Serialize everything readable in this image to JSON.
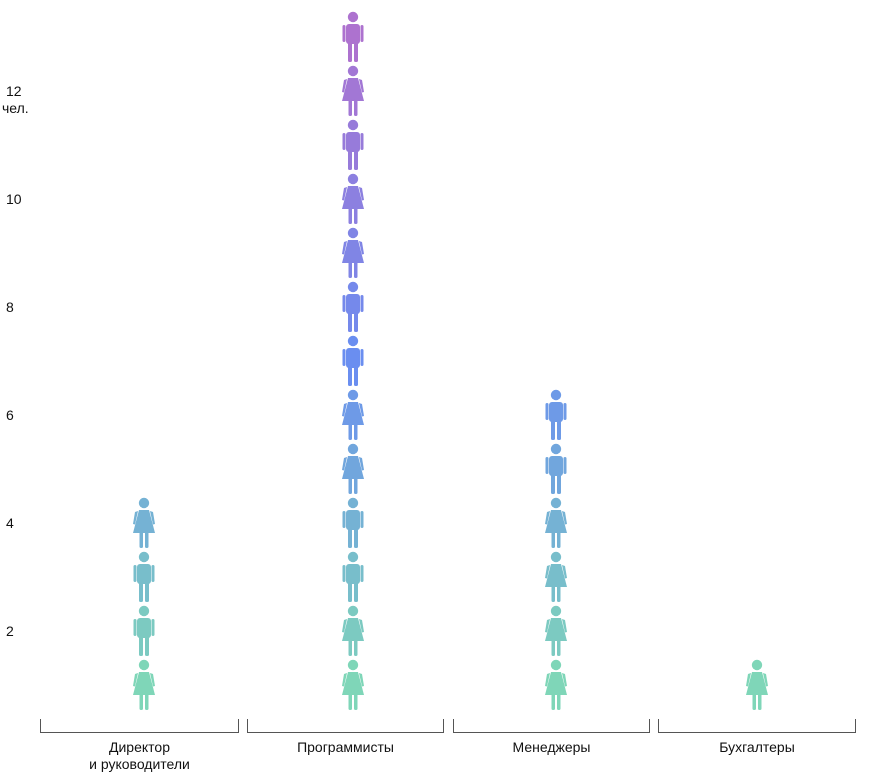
{
  "chart_data": {
    "type": "bar",
    "style": "pictograph",
    "unit_label": "чел.",
    "yticks": [
      2,
      4,
      6,
      8,
      10,
      12
    ],
    "ylim": [
      0,
      14
    ],
    "categories": [
      "Директор\nи руководители",
      "Программисты",
      "Менеджеры",
      "Бухгалтеры"
    ],
    "values": [
      4,
      13,
      6,
      1
    ],
    "icons": [
      [
        "female",
        "male",
        "male",
        "female"
      ],
      [
        "female",
        "female",
        "male",
        "male",
        "female",
        "female",
        "male",
        "male",
        "female",
        "female",
        "male",
        "female",
        "male"
      ],
      [
        "female",
        "female",
        "female",
        "female",
        "male",
        "male"
      ],
      [
        "female"
      ]
    ]
  },
  "colors": {
    "gradient_low": "#7fd6b8",
    "gradient_mid": "#6a8ef0",
    "gradient_high": "#ad72cf",
    "bracket": "#555555"
  }
}
